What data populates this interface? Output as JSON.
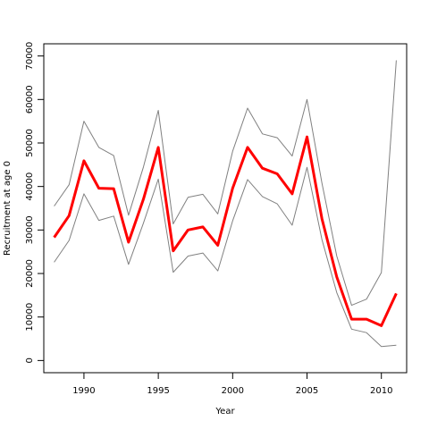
{
  "chart_data": {
    "type": "line",
    "title": "",
    "xlabel": "Year",
    "ylabel": "Recruitment at age 0",
    "xlim": [
      1987.3,
      2011.7
    ],
    "ylim": [
      -2800,
      72800
    ],
    "x_ticks": [
      1990,
      1995,
      2000,
      2005,
      2010
    ],
    "y_ticks": [
      0,
      10000,
      20000,
      30000,
      40000,
      50000,
      60000,
      70000
    ],
    "grid": false,
    "legend": "none",
    "x": [
      1988,
      1989,
      1990,
      1991,
      1992,
      1993,
      1994,
      1995,
      1996,
      1997,
      1998,
      1999,
      2000,
      2001,
      2002,
      2003,
      2004,
      2005,
      2006,
      2007,
      2008,
      2009,
      2010,
      2011
    ],
    "series": [
      {
        "color": "#ff0000",
        "style": "thick",
        "values": [
          28300,
          33300,
          45900,
          39600,
          39500,
          27200,
          37100,
          49000,
          25200,
          30000,
          30700,
          26500,
          39600,
          49000,
          44200,
          42900,
          38300,
          51400,
          32600,
          19200,
          9500,
          9500,
          8000,
          15400
        ]
      },
      {
        "color": "#808080",
        "style": "thin",
        "values": [
          35500,
          40400,
          55000,
          49000,
          47100,
          33400,
          44500,
          57500,
          31400,
          37500,
          38200,
          33700,
          48100,
          58000,
          52100,
          51200,
          47000,
          60000,
          40800,
          24000,
          12700,
          14100,
          20200,
          69000
        ]
      },
      {
        "color": "#808080",
        "style": "thin",
        "values": [
          22600,
          27600,
          38300,
          32200,
          33200,
          22100,
          31600,
          41700,
          20300,
          24000,
          24700,
          20600,
          32100,
          41600,
          37700,
          36000,
          31100,
          44400,
          27800,
          15600,
          7200,
          6400,
          3200,
          3500
        ]
      }
    ]
  }
}
